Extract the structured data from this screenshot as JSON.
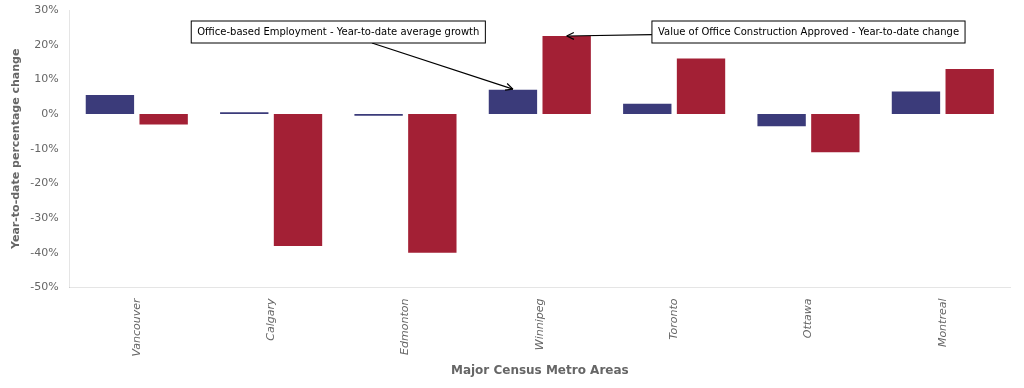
{
  "chart_data": {
    "type": "bar",
    "categories": [
      "Vancouver",
      "Calgary",
      "Edmonton",
      "Winnipeg",
      "Toronto",
      "Ottawa",
      "Montreal"
    ],
    "series": [
      {
        "color": "#3B3B7A",
        "values": [
          5.5,
          0.5,
          -0.5,
          7.0,
          3.0,
          -3.5,
          6.5
        ]
      },
      {
        "color": "#A32035",
        "values": [
          -3.0,
          -38.0,
          -40.0,
          22.5,
          16.0,
          -11.0,
          13.0
        ]
      }
    ],
    "xlabel": "Major Census Metro Areas",
    "ylabel": "Year-to-date percentage change",
    "ylim": [
      -50,
      30
    ],
    "yticks": [
      {
        "value": -50,
        "label": "-50%"
      },
      {
        "value": -40,
        "label": "-40%"
      },
      {
        "value": -30,
        "label": "-30%"
      },
      {
        "value": -20,
        "label": "-20%"
      },
      {
        "value": -10,
        "label": "-10%"
      },
      {
        "value": 0,
        "label": "0%"
      },
      {
        "value": 10,
        "label": "10%"
      },
      {
        "value": 20,
        "label": "20%"
      },
      {
        "value": 30,
        "label": "30%"
      }
    ],
    "grid": false,
    "annotations": [
      {
        "text": "Office-based Employment - Year-to-date average growth",
        "x": "Winnipeg",
        "y": 7.2
      },
      {
        "text": "Value of Office Construction Approved - Year-to-date change",
        "x": "Winnipeg",
        "y": 22.5
      }
    ]
  }
}
